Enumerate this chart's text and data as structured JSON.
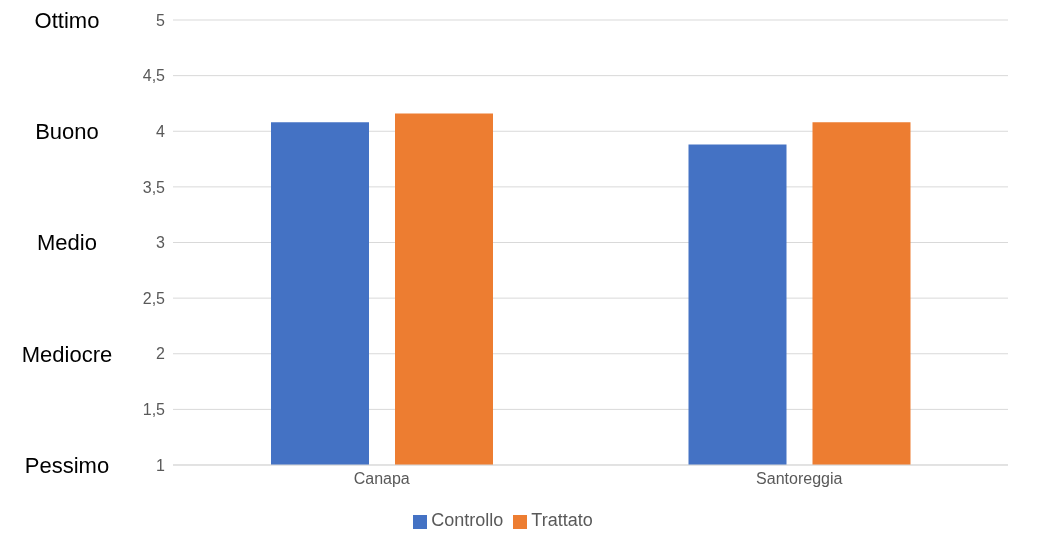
{
  "chart_data": {
    "type": "bar",
    "categories": [
      "Canapa",
      "Santoreggia"
    ],
    "series": [
      {
        "name": "Controllo",
        "color": "#4472c4",
        "values": [
          4.08,
          3.88
        ]
      },
      {
        "name": "Trattato",
        "color": "#ed7d31",
        "values": [
          4.16,
          4.08
        ]
      }
    ],
    "ylim": [
      1,
      5
    ],
    "yticks": [
      1,
      {
        "value": 1.5,
        "label": "1,5"
      },
      2,
      {
        "value": 2.5,
        "label": "2,5"
      },
      3,
      {
        "value": 3.5,
        "label": "3,5"
      },
      4,
      {
        "value": 4.5,
        "label": "4,5"
      },
      5
    ],
    "annotations": [
      "Ottimo",
      "Buono",
      "Medio",
      "Mediocre",
      "Pessimo"
    ],
    "grid": "y",
    "legend": "bottom"
  }
}
